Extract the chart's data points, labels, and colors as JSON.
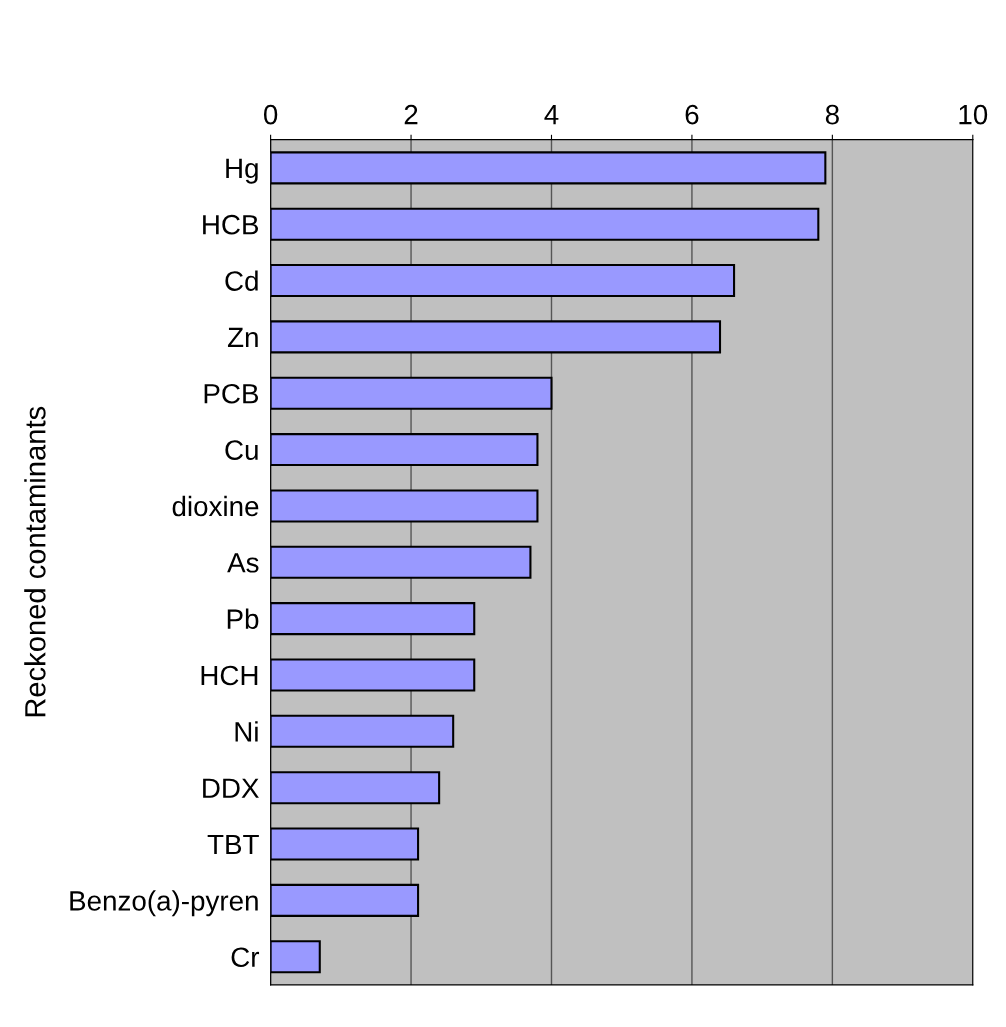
{
  "chart_data": {
    "type": "bar",
    "orientation": "horizontal",
    "ylabel": "Reckoned contaminants",
    "categories": [
      "Hg",
      "HCB",
      "Cd",
      "Zn",
      "PCB",
      "Cu",
      "dioxine",
      "As",
      "Pb",
      "HCH",
      "Ni",
      "DDX",
      "TBT",
      "Benzo(a)-pyren",
      "Cr"
    ],
    "values": [
      7.9,
      7.8,
      6.6,
      6.4,
      4.0,
      3.8,
      3.8,
      3.7,
      2.9,
      2.9,
      2.6,
      2.4,
      2.1,
      2.1,
      0.7
    ],
    "color": "#9999ff",
    "xlim": [
      0,
      10
    ],
    "xticks": [
      0,
      2,
      4,
      6,
      8,
      10
    ],
    "grid": "x"
  }
}
